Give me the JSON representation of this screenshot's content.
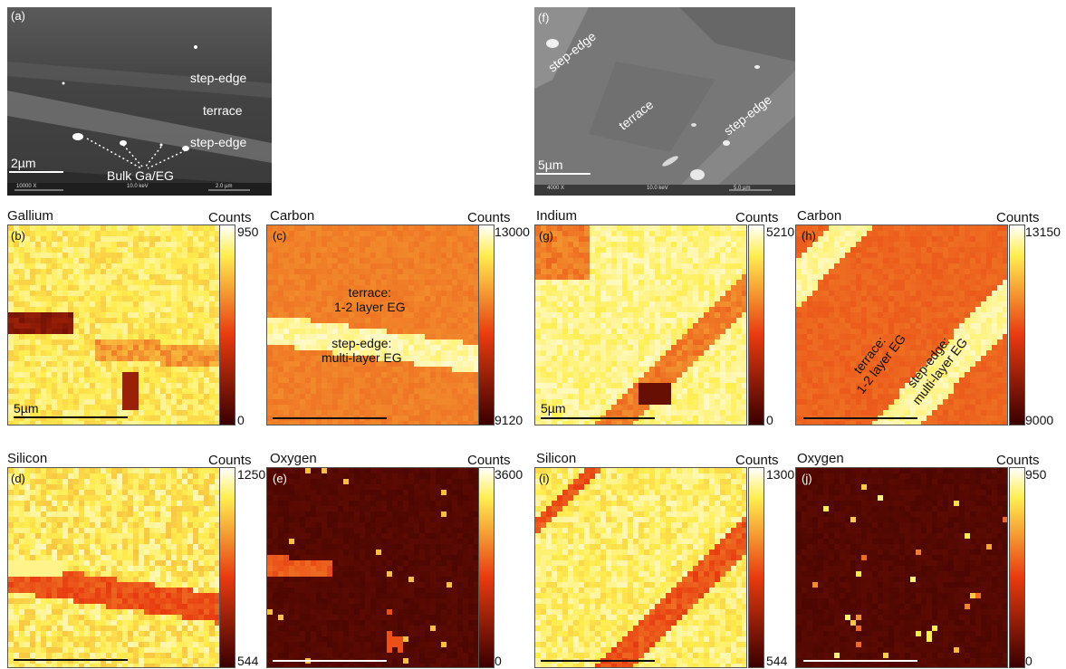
{
  "sem_a": {
    "label": "(a)",
    "annotations": [
      "step-edge",
      "terrace",
      "step-edge",
      "Bulk Ga/EG"
    ],
    "scalebar": "2µm",
    "info": [
      "10000 X",
      "10.0 keV",
      "2.0 µm"
    ]
  },
  "sem_f": {
    "label": "(f)",
    "annotations": [
      "step-edge",
      "terrace",
      "step-edge"
    ],
    "scalebar": "5µm",
    "info": [
      "4000 X",
      "10.0 keV",
      "5.0 µm"
    ]
  },
  "maps": [
    {
      "label": "(b)",
      "title": "Gallium",
      "counts": "Counts",
      "max": "950",
      "min": "0",
      "scalebar": "5µm",
      "annotation": []
    },
    {
      "label": "(c)",
      "title": "Carbon",
      "counts": "Counts",
      "max": "13000",
      "min": "9120",
      "scalebar": "",
      "annotation": [
        "terrace:",
        "1-2 layer EG",
        "step-edge:",
        "multi-layer EG"
      ]
    },
    {
      "label": "(g)",
      "title": "Indium",
      "counts": "Counts",
      "max": "5210",
      "min": "0",
      "scalebar": "5µm",
      "annotation": []
    },
    {
      "label": "(h)",
      "title": "Carbon",
      "counts": "Counts",
      "max": "13150",
      "min": "9000",
      "scalebar": "",
      "annotation": [
        "terrace:",
        "1-2 layer EG",
        "step-edge:",
        "multi-layer EG"
      ]
    },
    {
      "label": "(d)",
      "title": "Silicon",
      "counts": "Counts",
      "max": "1250",
      "min": "544",
      "scalebar": "",
      "annotation": []
    },
    {
      "label": "(e)",
      "title": "Oxygen",
      "counts": "Counts",
      "max": "3600",
      "min": "0",
      "scalebar": "",
      "annotation": []
    },
    {
      "label": "(i)",
      "title": "Silicon",
      "counts": "Counts",
      "max": "1300",
      "min": "544",
      "scalebar": "",
      "annotation": []
    },
    {
      "label": "(j)",
      "title": "Oxygen",
      "counts": "Counts",
      "max": "950",
      "min": "0",
      "scalebar": "",
      "annotation": []
    }
  ],
  "colors": {
    "hot_low": "#3a0000",
    "hot_mid": "#e83a10",
    "hot_high": "#ffee50",
    "hot_white": "#ffffff",
    "sem_gray": "#4a4a4a"
  }
}
